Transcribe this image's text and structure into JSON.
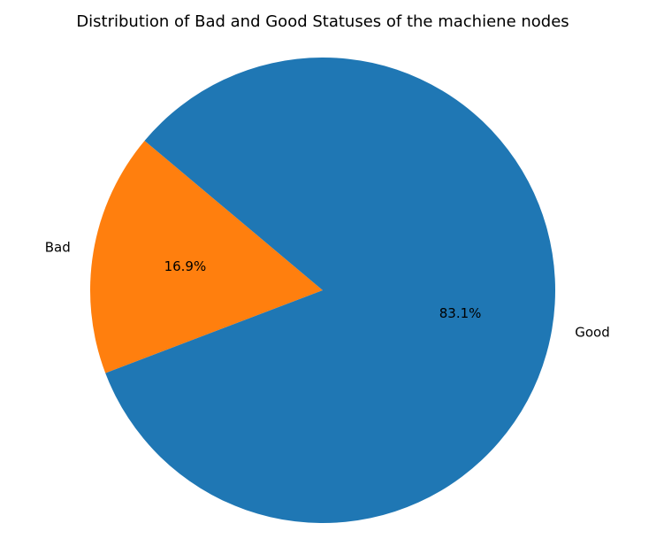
{
  "chart_data": {
    "type": "pie",
    "title": "Distribution of Bad and Good Statuses of the machiene nodes",
    "slices": [
      {
        "label": "Bad",
        "value": 16.9,
        "pct_label": "16.9%",
        "color": "#ff7f0e"
      },
      {
        "label": "Good",
        "value": 83.1,
        "pct_label": "83.1%",
        "color": "#1f77b4"
      }
    ],
    "start_angle_deg": 140,
    "direction": "counterclockwise",
    "legend": "none"
  }
}
